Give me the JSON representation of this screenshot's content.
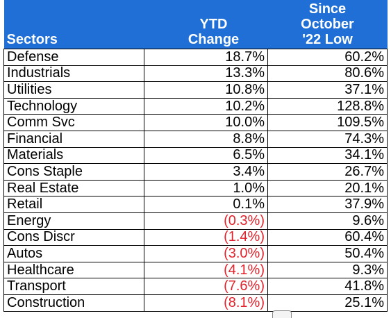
{
  "table": {
    "headers": {
      "sectors": "Sectors",
      "ytd": [
        "YTD",
        "Change"
      ],
      "since": [
        "Since",
        "October",
        "'22 Low"
      ]
    },
    "negative_color": "#e0222b",
    "header_color": "#1f6fd6",
    "rows": [
      {
        "sector": "Defense",
        "ytd": "18.7%",
        "since": "60.2%",
        "ytd_negative": false
      },
      {
        "sector": "Industrials",
        "ytd": "13.3%",
        "since": "80.6%",
        "ytd_negative": false
      },
      {
        "sector": "Utilities",
        "ytd": "10.8%",
        "since": "37.1%",
        "ytd_negative": false
      },
      {
        "sector": "Technology",
        "ytd": "10.2%",
        "since": "128.8%",
        "ytd_negative": false
      },
      {
        "sector": "Comm Svc",
        "ytd": "10.0%",
        "since": "109.5%",
        "ytd_negative": false
      },
      {
        "sector": "Financial",
        "ytd": "8.8%",
        "since": "74.3%",
        "ytd_negative": false
      },
      {
        "sector": "Materials",
        "ytd": "6.5%",
        "since": "34.1%",
        "ytd_negative": false
      },
      {
        "sector": "Cons Staple",
        "ytd": "3.4%",
        "since": "26.7%",
        "ytd_negative": false
      },
      {
        "sector": "Real Estate",
        "ytd": "1.0%",
        "since": "20.1%",
        "ytd_negative": false
      },
      {
        "sector": "Retail",
        "ytd": "0.1%",
        "since": "37.9%",
        "ytd_negative": false
      },
      {
        "sector": "Energy",
        "ytd": "(0.3%)",
        "since": "9.6%",
        "ytd_negative": true
      },
      {
        "sector": "Cons Discr",
        "ytd": "(1.4%)",
        "since": "60.4%",
        "ytd_negative": true
      },
      {
        "sector": "Autos",
        "ytd": "(3.0%)",
        "since": "50.4%",
        "ytd_negative": true
      },
      {
        "sector": "Healthcare",
        "ytd": "(4.1%)",
        "since": "9.3%",
        "ytd_negative": true
      },
      {
        "sector": "Transport",
        "ytd": "(7.6%)",
        "since": "41.8%",
        "ytd_negative": true
      },
      {
        "sector": "Construction",
        "ytd": "(8.1%)",
        "since": "25.1%",
        "ytd_negative": true
      }
    ]
  }
}
